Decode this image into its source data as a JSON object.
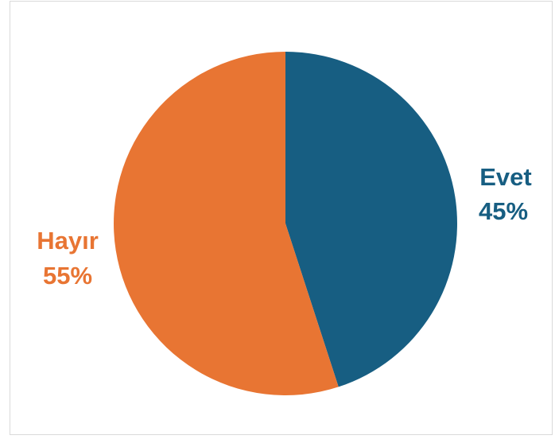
{
  "chart_data": {
    "type": "pie",
    "title": "",
    "slices": [
      {
        "name": "Evet",
        "value": 45,
        "label": "45%",
        "color": "#175e82"
      },
      {
        "name": "Hayır",
        "value": 55,
        "label": "55%",
        "color": "#e87533"
      }
    ],
    "start_angle_deg": 0,
    "direction": "clockwise",
    "legend": "none",
    "data_labels": "outside"
  }
}
